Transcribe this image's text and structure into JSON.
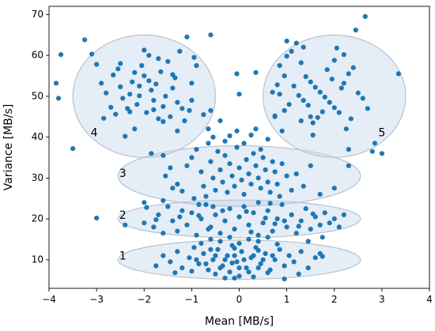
{
  "chart_data": {
    "type": "scatter",
    "title": "",
    "xlabel": "Mean [MB/s]",
    "ylabel": "Variance [MB/s]",
    "xlim": [
      -4,
      4
    ],
    "ylim": [
      3,
      72
    ],
    "xticks": [
      -4,
      -3,
      -2,
      -1,
      0,
      1,
      2,
      3,
      4
    ],
    "yticks": [
      10,
      20,
      30,
      40,
      50,
      60,
      70
    ],
    "xtick_labels": [
      "−4",
      "−3",
      "−2",
      "−1",
      "0",
      "1",
      "2",
      "3",
      "4"
    ],
    "ytick_labels": [
      "10",
      "20",
      "30",
      "40",
      "50",
      "60",
      "70"
    ],
    "grid": false,
    "point_color": "#1f77b4",
    "region_fill": "#c6d7ea",
    "region_stroke": "#b9c2cc",
    "regions": [
      {
        "label": "1",
        "cx": 0.0,
        "cy": 10.0,
        "rx": 2.55,
        "ry": 4.8,
        "label_x": -2.45,
        "label_y": 10.8
      },
      {
        "label": "2",
        "cx": 0.0,
        "cy": 20.0,
        "rx": 2.55,
        "ry": 4.6,
        "label_x": -2.45,
        "label_y": 20.8
      },
      {
        "label": "3",
        "cx": 0.0,
        "cy": 30.5,
        "rx": 2.55,
        "ry": 7.4,
        "label_x": -2.45,
        "label_y": 31.0
      },
      {
        "label": "4",
        "cx": -2.0,
        "cy": 50.0,
        "rx": 1.5,
        "ry": 15.0,
        "label_x": -3.05,
        "label_y": 41.0
      },
      {
        "label": "5",
        "cx": 2.0,
        "cy": 50.0,
        "rx": 1.5,
        "ry": 15.0,
        "label_x": 3.0,
        "label_y": 41.0
      }
    ],
    "points": [
      [
        -3.8,
        49.5
      ],
      [
        -3.85,
        53.2
      ],
      [
        -3.75,
        60.2
      ],
      [
        -3.5,
        37.2
      ],
      [
        -3.25,
        63.8
      ],
      [
        -3.1,
        60.3
      ],
      [
        -3.0,
        57.8
      ],
      [
        -2.85,
        44.6
      ],
      [
        -2.8,
        50.8
      ],
      [
        -2.7,
        47.3
      ],
      [
        -2.65,
        55.2
      ],
      [
        -2.55,
        56.7
      ],
      [
        -2.5,
        58.0
      ],
      [
        -2.45,
        49.5
      ],
      [
        -2.35,
        47.0
      ],
      [
        -2.3,
        50.5
      ],
      [
        -2.25,
        53.5
      ],
      [
        -2.2,
        42.0
      ],
      [
        -2.15,
        48.0
      ],
      [
        -2.1,
        52.5
      ],
      [
        -2.05,
        57.5
      ],
      [
        -2.0,
        55.0
      ],
      [
        -1.95,
        46.0
      ],
      [
        -1.9,
        60.0
      ],
      [
        -1.85,
        51.5
      ],
      [
        -1.8,
        49.0
      ],
      [
        -1.75,
        53.0
      ],
      [
        -1.7,
        44.5
      ],
      [
        -1.65,
        56.0
      ],
      [
        -1.6,
        47.5
      ],
      [
        -1.55,
        50.0
      ],
      [
        -1.5,
        58.5
      ],
      [
        -1.45,
        45.0
      ],
      [
        -1.4,
        52.0
      ],
      [
        -1.35,
        54.5
      ],
      [
        -1.3,
        48.5
      ],
      [
        -1.25,
        61.0
      ],
      [
        -1.2,
        47.0
      ],
      [
        -1.15,
        44.0
      ],
      [
        -1.1,
        64.5
      ],
      [
        -1.05,
        46.5
      ],
      [
        -1.0,
        49.0
      ],
      [
        -0.95,
        59.5
      ],
      [
        -0.9,
        57.5
      ],
      [
        -2.4,
        40.2
      ],
      [
        -2.6,
        45.6
      ],
      [
        -2.0,
        61.3
      ],
      [
        -1.7,
        59.2
      ],
      [
        -2.2,
        55.8
      ],
      [
        -1.9,
        53.8
      ],
      [
        -2.5,
        52.3
      ],
      [
        -2.3,
        46.2
      ],
      [
        -1.6,
        43.8
      ],
      [
        -1.3,
        41.5
      ],
      [
        -2.9,
        53.2
      ],
      [
        -2.1,
        50.1
      ],
      [
        -1.8,
        46.7
      ],
      [
        -1.4,
        55.3
      ],
      [
        -1.0,
        53.2
      ],
      [
        -0.6,
        65.0
      ],
      [
        -0.05,
        55.5
      ],
      [
        0.35,
        55.8
      ],
      [
        0.0,
        50.5
      ],
      [
        -0.2,
        40.3
      ],
      [
        2.65,
        69.5
      ],
      [
        2.45,
        66.2
      ],
      [
        3.35,
        55.5
      ],
      [
        1.0,
        63.5
      ],
      [
        1.2,
        63.0
      ],
      [
        1.1,
        61.0
      ],
      [
        1.3,
        58.2
      ],
      [
        0.85,
        57.5
      ],
      [
        0.95,
        55.0
      ],
      [
        1.4,
        54.8
      ],
      [
        1.5,
        53.5
      ],
      [
        1.6,
        52.2
      ],
      [
        1.7,
        51.0
      ],
      [
        1.8,
        49.8
      ],
      [
        1.9,
        48.5
      ],
      [
        2.0,
        47.2
      ],
      [
        2.1,
        46.0
      ],
      [
        2.2,
        53.2
      ],
      [
        2.3,
        55.5
      ],
      [
        2.4,
        57.0
      ],
      [
        2.5,
        50.8
      ],
      [
        2.6,
        49.5
      ],
      [
        2.2,
        60.2
      ],
      [
        2.0,
        58.8
      ],
      [
        1.85,
        56.5
      ],
      [
        1.75,
        46.2
      ],
      [
        1.65,
        44.8
      ],
      [
        1.55,
        43.5
      ],
      [
        1.45,
        47.8
      ],
      [
        1.35,
        49.0
      ],
      [
        1.25,
        50.2
      ],
      [
        1.15,
        52.5
      ],
      [
        1.05,
        48.0
      ],
      [
        0.95,
        46.5
      ],
      [
        0.85,
        50.5
      ],
      [
        0.75,
        45.2
      ],
      [
        0.8,
        52.8
      ],
      [
        0.9,
        41.5
      ],
      [
        1.3,
        44.0
      ],
      [
        1.55,
        40.5
      ],
      [
        2.25,
        42.0
      ],
      [
        2.35,
        44.5
      ],
      [
        2.7,
        47.0
      ],
      [
        2.15,
        52.0
      ],
      [
        1.95,
        54.2
      ],
      [
        2.05,
        61.8
      ],
      [
        1.0,
        59.8
      ],
      [
        2.8,
        36.5
      ],
      [
        3.0,
        36.0
      ],
      [
        2.85,
        38.5
      ],
      [
        2.3,
        33.0
      ],
      [
        2.3,
        37.0
      ],
      [
        0.75,
        45.0
      ],
      [
        1.5,
        45.0
      ],
      [
        0.7,
        51.0
      ],
      [
        1.35,
        62.0
      ],
      [
        -1.85,
        36.0
      ],
      [
        -1.6,
        35.5
      ],
      [
        -1.45,
        32.5
      ],
      [
        -1.3,
        28.5
      ],
      [
        -1.2,
        26.8
      ],
      [
        -1.1,
        33.0
      ],
      [
        -1.0,
        35.0
      ],
      [
        -0.9,
        37.0
      ],
      [
        -0.8,
        31.5
      ],
      [
        -0.75,
        28.0
      ],
      [
        -0.7,
        25.5
      ],
      [
        -0.65,
        38.5
      ],
      [
        -0.6,
        34.0
      ],
      [
        -0.55,
        30.0
      ],
      [
        -0.5,
        27.0
      ],
      [
        -0.45,
        36.5
      ],
      [
        -0.4,
        32.0
      ],
      [
        -0.35,
        29.0
      ],
      [
        -0.3,
        35.5
      ],
      [
        -0.25,
        26.5
      ],
      [
        -0.2,
        33.5
      ],
      [
        -0.15,
        30.5
      ],
      [
        -0.1,
        28.0
      ],
      [
        -0.05,
        37.5
      ],
      [
        0.0,
        32.5
      ],
      [
        0.05,
        29.5
      ],
      [
        0.1,
        26.0
      ],
      [
        0.15,
        34.5
      ],
      [
        0.2,
        31.0
      ],
      [
        0.25,
        28.5
      ],
      [
        0.3,
        36.0
      ],
      [
        0.35,
        33.0
      ],
      [
        0.4,
        30.0
      ],
      [
        0.45,
        27.5
      ],
      [
        0.5,
        35.0
      ],
      [
        0.55,
        32.0
      ],
      [
        0.6,
        29.0
      ],
      [
        0.65,
        26.5
      ],
      [
        0.7,
        34.0
      ],
      [
        0.75,
        31.5
      ],
      [
        0.8,
        28.5
      ],
      [
        0.85,
        25.5
      ],
      [
        0.9,
        33.5
      ],
      [
        1.0,
        30.5
      ],
      [
        1.1,
        27.0
      ],
      [
        1.2,
        31.0
      ],
      [
        1.35,
        28.0
      ],
      [
        1.5,
        33.0
      ],
      [
        1.7,
        26.0
      ],
      [
        2.0,
        27.5
      ],
      [
        -0.65,
        42.0
      ],
      [
        -0.55,
        40.0
      ],
      [
        -0.4,
        44.0
      ],
      [
        -0.3,
        39.0
      ],
      [
        -0.05,
        41.5
      ],
      [
        0.1,
        38.5
      ],
      [
        0.25,
        40.5
      ],
      [
        0.45,
        37.0
      ],
      [
        0.6,
        39.5
      ],
      [
        -0.75,
        45.5
      ],
      [
        -0.6,
        46.5
      ],
      [
        0.35,
        42.0
      ],
      [
        -1.55,
        30.5
      ],
      [
        -1.4,
        27.5
      ],
      [
        -1.6,
        24.5
      ],
      [
        -0.95,
        25.0
      ],
      [
        -0.85,
        23.5
      ],
      [
        -0.55,
        23.0
      ],
      [
        0.4,
        24.0
      ],
      [
        0.65,
        23.8
      ],
      [
        -1.95,
        22.8
      ],
      [
        -2.0,
        24.0
      ],
      [
        -1.8,
        18.0
      ],
      [
        -1.7,
        21.0
      ],
      [
        -1.6,
        16.5
      ],
      [
        -1.5,
        23.0
      ],
      [
        -1.4,
        19.5
      ],
      [
        -1.3,
        17.0
      ],
      [
        -1.2,
        22.0
      ],
      [
        -1.1,
        18.5
      ],
      [
        -1.0,
        21.5
      ],
      [
        -0.9,
        16.0
      ],
      [
        -0.8,
        20.0
      ],
      [
        -0.7,
        23.5
      ],
      [
        -0.6,
        18.0
      ],
      [
        -0.5,
        21.0
      ],
      [
        -0.4,
        16.5
      ],
      [
        -0.3,
        19.5
      ],
      [
        -0.2,
        22.5
      ],
      [
        -0.1,
        17.5
      ],
      [
        0.0,
        20.5
      ],
      [
        0.1,
        23.0
      ],
      [
        0.2,
        18.5
      ],
      [
        0.3,
        21.5
      ],
      [
        0.4,
        16.0
      ],
      [
        0.5,
        19.0
      ],
      [
        0.6,
        22.0
      ],
      [
        0.7,
        17.0
      ],
      [
        0.8,
        20.0
      ],
      [
        0.9,
        23.5
      ],
      [
        1.0,
        18.0
      ],
      [
        1.1,
        21.0
      ],
      [
        1.2,
        16.5
      ],
      [
        1.3,
        19.5
      ],
      [
        1.4,
        22.5
      ],
      [
        1.5,
        17.5
      ],
      [
        1.6,
        20.5
      ],
      [
        1.7,
        18.5
      ],
      [
        1.8,
        21.5
      ],
      [
        1.9,
        19.0
      ],
      [
        2.0,
        20.0
      ],
      [
        2.1,
        18.0
      ],
      [
        2.2,
        21.0
      ],
      [
        1.75,
        15.5
      ],
      [
        1.45,
        14.5
      ],
      [
        -3.0,
        20.2
      ],
      [
        -2.4,
        18.5
      ],
      [
        -2.0,
        19.0
      ],
      [
        -1.75,
        19.8
      ],
      [
        -0.85,
        20.8
      ],
      [
        -0.35,
        22.0
      ],
      [
        0.15,
        21.8
      ],
      [
        0.55,
        20.2
      ],
      [
        0.95,
        19.5
      ],
      [
        1.25,
        18.2
      ],
      [
        -1.25,
        20.5
      ],
      [
        -0.65,
        17.5
      ],
      [
        0.25,
        16.8
      ],
      [
        0.75,
        18.8
      ],
      [
        1.55,
        21.2
      ],
      [
        -1.75,
        8.5
      ],
      [
        -1.6,
        11.0
      ],
      [
        -1.45,
        9.5
      ],
      [
        -1.3,
        12.0
      ],
      [
        -1.2,
        8.0
      ],
      [
        -1.05,
        10.5
      ],
      [
        -0.95,
        13.0
      ],
      [
        -0.85,
        9.0
      ],
      [
        -0.75,
        11.5
      ],
      [
        -0.65,
        7.5
      ],
      [
        -0.55,
        10.0
      ],
      [
        -0.45,
        12.5
      ],
      [
        -0.35,
        8.5
      ],
      [
        -0.25,
        11.0
      ],
      [
        -0.15,
        13.5
      ],
      [
        -0.05,
        9.5
      ],
      [
        0.05,
        12.0
      ],
      [
        0.15,
        8.0
      ],
      [
        0.25,
        10.5
      ],
      [
        0.35,
        13.0
      ],
      [
        0.45,
        9.0
      ],
      [
        0.55,
        11.5
      ],
      [
        0.65,
        7.5
      ],
      [
        0.75,
        10.0
      ],
      [
        0.85,
        12.5
      ],
      [
        0.95,
        8.5
      ],
      [
        1.05,
        11.0
      ],
      [
        1.15,
        9.5
      ],
      [
        1.3,
        12.0
      ],
      [
        1.45,
        8.0
      ],
      [
        1.6,
        10.5
      ],
      [
        1.7,
        11.5
      ],
      [
        1.75,
        10.8
      ],
      [
        -0.5,
        6.5
      ],
      [
        -0.3,
        5.5
      ],
      [
        0.0,
        6.0
      ],
      [
        0.3,
        5.8
      ],
      [
        0.6,
        6.8
      ],
      [
        0.95,
        5.3
      ],
      [
        -0.8,
        14.0
      ],
      [
        -0.6,
        15.0
      ],
      [
        -0.4,
        14.5
      ],
      [
        -0.2,
        15.5
      ],
      [
        0.0,
        14.0
      ],
      [
        0.2,
        15.0
      ],
      [
        0.4,
        14.5
      ],
      [
        0.6,
        15.5
      ],
      [
        -0.9,
        10.0
      ],
      [
        -0.7,
        9.0
      ],
      [
        -0.5,
        11.0
      ],
      [
        -0.3,
        10.0
      ],
      [
        -0.1,
        11.0
      ],
      [
        0.1,
        10.0
      ],
      [
        0.3,
        11.0
      ],
      [
        0.5,
        10.0
      ],
      [
        0.7,
        11.0
      ],
      [
        -0.4,
        8.0
      ],
      [
        -0.2,
        7.0
      ],
      [
        0.0,
        8.0
      ],
      [
        0.2,
        7.0
      ],
      [
        0.4,
        8.0
      ],
      [
        -0.6,
        12.5
      ],
      [
        -0.1,
        12.8
      ],
      [
        0.4,
        12.3
      ],
      [
        -1.0,
        7.2
      ],
      [
        -0.1,
        5.5
      ],
      [
        0.8,
        13.8
      ],
      [
        -1.35,
        6.8
      ],
      [
        1.25,
        6.5
      ],
      [
        -0.15,
        9.2
      ]
    ]
  }
}
